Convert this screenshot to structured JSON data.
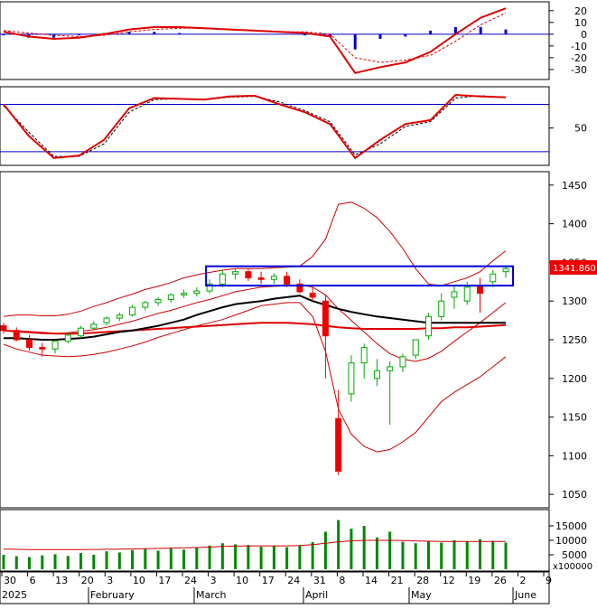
{
  "chart_data": [
    {
      "type": "line",
      "panel": "macd",
      "y_ticks": [
        20,
        10,
        0,
        -10,
        -20,
        -30
      ],
      "ylim": [
        -37,
        26
      ],
      "x": [
        "Dec 30",
        "Jan 2",
        "Jan 6",
        "Jan 13",
        "Jan 20",
        "Feb 3",
        "Feb 10",
        "Feb 17",
        "Feb 24",
        "Mar 3",
        "Mar 10",
        "Mar 17",
        "Mar 24",
        "Mar 31",
        "Apr 8",
        "Apr 14",
        "Apr 21",
        "Apr 28",
        "May 12",
        "May 19",
        "May 26"
      ],
      "series": [
        {
          "values": [
            2,
            -2,
            -4,
            -3,
            0,
            4,
            6,
            6,
            5,
            4,
            3,
            2,
            1,
            -2,
            -33,
            -28,
            -24,
            -15,
            0,
            14,
            22
          ]
        },
        {
          "values": [
            3,
            1,
            -1,
            -2,
            -1,
            2,
            4,
            5,
            5,
            4,
            3,
            2,
            2,
            0,
            -20,
            -24,
            -22,
            -18,
            -6,
            8,
            18
          ]
        },
        {
          "values": [
            -1,
            -3,
            -3,
            -1,
            1,
            2,
            2,
            1,
            0,
            0,
            0,
            0,
            -1,
            -2,
            -13,
            -4,
            -2,
            3,
            6,
            6,
            4
          ]
        }
      ],
      "colors": {
        "macd": "#e00000",
        "signal": "#e00000",
        "histogram": "#0000cc"
      }
    },
    {
      "type": "line",
      "panel": "stochastic",
      "y_ticks": [
        50
      ],
      "reference_levels": [
        80,
        20
      ],
      "ylim": [
        5,
        100
      ],
      "x": [
        "Dec 30",
        "Jan 2",
        "Jan 6",
        "Jan 13",
        "Jan 20",
        "Feb 3",
        "Feb 10",
        "Feb 17",
        "Feb 24",
        "Mar 3",
        "Mar 10",
        "Mar 17",
        "Mar 24",
        "Mar 31",
        "Apr 8",
        "Apr 14",
        "Apr 21",
        "Apr 28",
        "May 12",
        "May 19",
        "May 26"
      ],
      "series": [
        {
          "values": [
            80,
            40,
            12,
            15,
            35,
            75,
            88,
            87,
            86,
            90,
            91,
            80,
            70,
            55,
            12,
            35,
            55,
            60,
            92,
            90,
            89
          ]
        },
        {
          "values": [
            78,
            45,
            14,
            14,
            30,
            70,
            86,
            87,
            86,
            89,
            90,
            83,
            72,
            58,
            16,
            30,
            52,
            58,
            88,
            91,
            89
          ]
        }
      ],
      "colors": {
        "k": "#e00000",
        "d": "#000000",
        "levels": "#0000cc"
      }
    },
    {
      "type": "candlestick",
      "panel": "price",
      "y_ticks": [
        1450,
        1400,
        1350,
        1300,
        1250,
        1200,
        1150,
        1100,
        1050
      ],
      "ylim": [
        1035,
        1465
      ],
      "last_price_label": "1341.860",
      "x": [
        "Dec 30",
        "Jan 2",
        "Jan 6",
        "Jan 9",
        "Jan 13",
        "Jan 16",
        "Jan 20",
        "Jan 23",
        "Feb 3",
        "Feb 6",
        "Feb 10",
        "Feb 13",
        "Feb 17",
        "Feb 20",
        "Feb 24",
        "Feb 27",
        "Mar 3",
        "Mar 6",
        "Mar 10",
        "Mar 13",
        "Mar 17",
        "Mar 20",
        "Mar 24",
        "Mar 27",
        "Mar 31",
        "Apr 2",
        "Apr 8",
        "Apr 10",
        "Apr 14",
        "Apr 17",
        "Apr 21",
        "Apr 24",
        "Apr 28",
        "May 5",
        "May 12",
        "May 15",
        "May 19",
        "May 22",
        "May 26",
        "May 29"
      ],
      "open": [
        1268,
        1262,
        1250,
        1240,
        1238,
        1248,
        1255,
        1265,
        1272,
        1278,
        1282,
        1292,
        1298,
        1302,
        1308,
        1310,
        1313,
        1322,
        1335,
        1338,
        1330,
        1328,
        1332,
        1322,
        1310,
        1300,
        1148,
        1180,
        1220,
        1200,
        1210,
        1215,
        1230,
        1255,
        1280,
        1305,
        1300,
        1320,
        1325,
        1338
      ],
      "high": [
        1272,
        1266,
        1256,
        1246,
        1250,
        1260,
        1268,
        1274,
        1280,
        1285,
        1295,
        1300,
        1305,
        1310,
        1315,
        1318,
        1328,
        1340,
        1342,
        1342,
        1338,
        1336,
        1338,
        1328,
        1318,
        1308,
        1185,
        1230,
        1245,
        1225,
        1222,
        1232,
        1250,
        1285,
        1310,
        1320,
        1325,
        1330,
        1340,
        1345
      ],
      "low": [
        1258,
        1248,
        1236,
        1228,
        1232,
        1245,
        1252,
        1262,
        1268,
        1274,
        1280,
        1288,
        1294,
        1298,
        1304,
        1306,
        1310,
        1318,
        1328,
        1326,
        1322,
        1322,
        1318,
        1310,
        1300,
        1200,
        1075,
        1170,
        1200,
        1190,
        1140,
        1208,
        1225,
        1250,
        1275,
        1290,
        1295,
        1285,
        1318,
        1330
      ],
      "close": [
        1262,
        1250,
        1240,
        1238,
        1248,
        1256,
        1265,
        1270,
        1278,
        1282,
        1292,
        1298,
        1302,
        1308,
        1310,
        1313,
        1322,
        1335,
        1338,
        1330,
        1328,
        1332,
        1322,
        1312,
        1305,
        1255,
        1080,
        1220,
        1240,
        1210,
        1215,
        1228,
        1250,
        1280,
        1300,
        1312,
        1318,
        1310,
        1335,
        1342
      ],
      "overlays": {
        "bollinger_upper": [
          1280,
          1282,
          1282,
          1281,
          1281,
          1283,
          1287,
          1293,
          1298,
          1304,
          1309,
          1315,
          1319,
          1324,
          1330,
          1334,
          1337,
          1340,
          1342,
          1342,
          1342,
          1343,
          1344,
          1345,
          1358,
          1380,
          1425,
          1428,
          1420,
          1408,
          1390,
          1368,
          1342,
          1322,
          1320,
          1325,
          1330,
          1338,
          1352,
          1365
        ],
        "bollinger_middle": [
          1262,
          1260,
          1259,
          1258,
          1258,
          1259,
          1261,
          1263,
          1266,
          1270,
          1274,
          1279,
          1284,
          1288,
          1293,
          1298,
          1302,
          1307,
          1312,
          1315,
          1318,
          1319,
          1320,
          1321,
          1318,
          1308,
          1290,
          1275,
          1260,
          1245,
          1232,
          1225,
          1222,
          1226,
          1235,
          1248,
          1260,
          1272,
          1285,
          1298
        ],
        "bollinger_lower": [
          1244,
          1238,
          1234,
          1230,
          1229,
          1228,
          1229,
          1231,
          1234,
          1238,
          1242,
          1247,
          1253,
          1258,
          1263,
          1268,
          1272,
          1276,
          1282,
          1288,
          1294,
          1296,
          1298,
          1298,
          1280,
          1235,
          1160,
          1128,
          1112,
          1105,
          1108,
          1118,
          1130,
          1150,
          1170,
          1182,
          1192,
          1202,
          1215,
          1228
        ],
        "ma_black": [
          1252,
          1252,
          1251,
          1250,
          1250,
          1251,
          1252,
          1254,
          1257,
          1260,
          1262,
          1265,
          1268,
          1272,
          1276,
          1282,
          1287,
          1292,
          1296,
          1298,
          1300,
          1303,
          1305,
          1307,
          1300,
          1295,
          1290,
          1286,
          1283,
          1280,
          1278,
          1276,
          1274,
          1272,
          1272,
          1272,
          1272,
          1272,
          1272,
          1272
        ],
        "ma_red": [
          1262,
          1261,
          1260,
          1259,
          1258,
          1258,
          1258,
          1259,
          1260,
          1261,
          1262,
          1263,
          1264,
          1265,
          1266,
          1267,
          1268,
          1269,
          1270,
          1271,
          1272,
          1272,
          1272,
          1271,
          1270,
          1268,
          1266,
          1265,
          1264,
          1264,
          1264,
          1264,
          1264,
          1265,
          1265,
          1266,
          1266,
          1267,
          1268,
          1269
        ]
      },
      "colors": {
        "up": "#00aa00",
        "down": "#ee0000",
        "bollinger": "#cc0000",
        "ma_black": "#000000",
        "ma_red": "#dd0000",
        "box": "#0000dd",
        "price_label_bg": "#ee0000"
      }
    },
    {
      "type": "bar",
      "panel": "volume",
      "y_ticks": [
        15000,
        10000,
        5000
      ],
      "unit_label": "x100000",
      "ylim": [
        0,
        20000
      ],
      "x": [
        "Dec 30",
        "Jan 2",
        "Jan 6",
        "Jan 9",
        "Jan 13",
        "Jan 16",
        "Jan 20",
        "Jan 23",
        "Feb 3",
        "Feb 6",
        "Feb 10",
        "Feb 13",
        "Feb 17",
        "Feb 20",
        "Feb 24",
        "Feb 27",
        "Mar 3",
        "Mar 6",
        "Mar 10",
        "Mar 13",
        "Mar 17",
        "Mar 20",
        "Mar 24",
        "Mar 27",
        "Mar 31",
        "Apr 2",
        "Apr 8",
        "Apr 10",
        "Apr 14",
        "Apr 17",
        "Apr 21",
        "Apr 24",
        "Apr 28",
        "May 5",
        "May 12",
        "May 15",
        "May 19",
        "May 22",
        "May 26",
        "May 29"
      ],
      "values": [
        5000,
        4500,
        4200,
        4800,
        5200,
        4600,
        5600,
        5000,
        6200,
        5800,
        6600,
        7000,
        6400,
        7200,
        6800,
        7600,
        8200,
        9000,
        8600,
        8400,
        7800,
        8000,
        7600,
        8200,
        9400,
        13000,
        17000,
        14000,
        15000,
        11000,
        13000,
        9500,
        9000,
        9800,
        9200,
        10000,
        9600,
        10400,
        9800,
        9200
      ],
      "overlay_ma": [
        7000,
        6900,
        6800,
        6800,
        6800,
        6800,
        6800,
        6850,
        6900,
        6950,
        7000,
        7100,
        7200,
        7300,
        7400,
        7500,
        7700,
        7900,
        8000,
        8050,
        8100,
        8100,
        8100,
        8200,
        8500,
        9000,
        9500,
        9800,
        10000,
        10000,
        10000,
        9900,
        9800,
        9700,
        9600,
        9600,
        9600,
        9600,
        9600,
        9600
      ],
      "colors": {
        "bars": "#008800",
        "ma": "#cc0000"
      }
    }
  ],
  "x_axis": {
    "date_ticks": [
      "30",
      "6",
      "13",
      "20",
      "3",
      "10",
      "17",
      "24",
      "3",
      "10",
      "17",
      "24",
      "31",
      "8",
      "14",
      "21",
      "28",
      "12",
      "19",
      "26",
      "2",
      "9"
    ],
    "month_labels": [
      "2025",
      "February",
      "March",
      "April",
      "May",
      "June"
    ]
  }
}
